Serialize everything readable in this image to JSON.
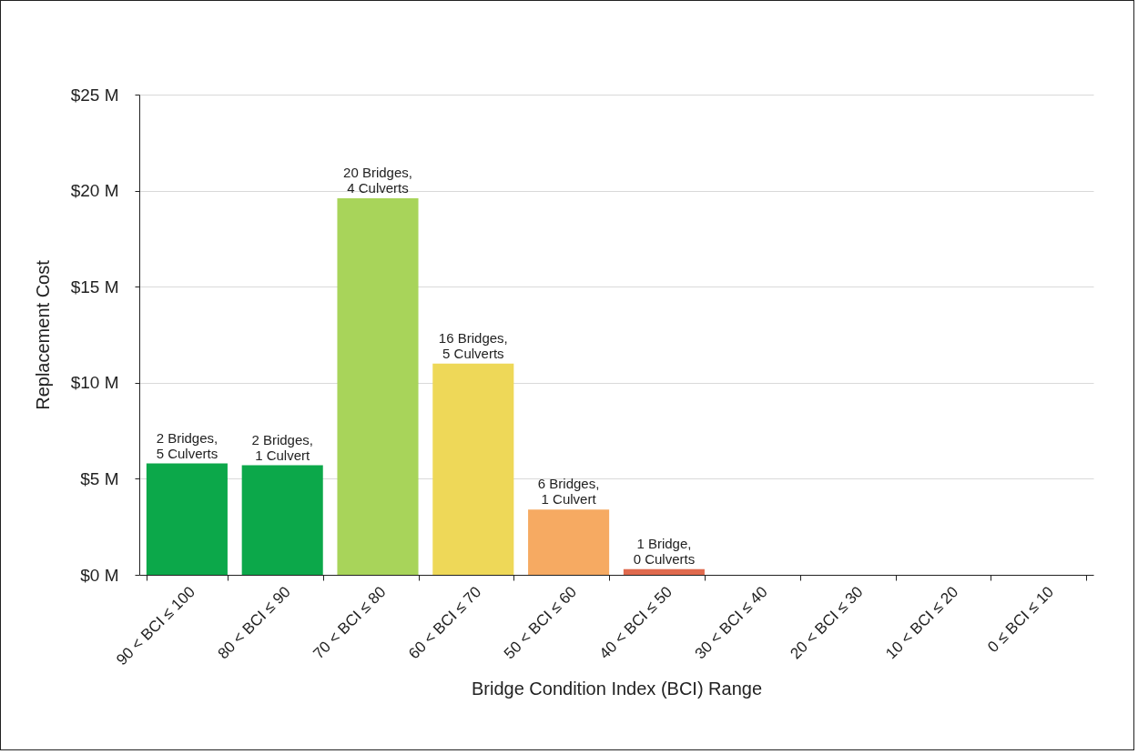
{
  "chart_data": {
    "type": "bar",
    "xlabel": "Bridge Condition Index (BCI) Range",
    "ylabel": "Replacement Cost",
    "categories": [
      "90 < BCI ≤ 100",
      "80 < BCI ≤ 90",
      "70 < BCI ≤ 80",
      "60 < BCI ≤ 70",
      "50 < BCI ≤ 60",
      "40 < BCI ≤ 50",
      "30 < BCI ≤ 40",
      "20 < BCI ≤ 30",
      "10 < BCI ≤ 20",
      "0 ≤ BCI ≤ 10"
    ],
    "values": [
      5.8,
      5.7,
      19.6,
      11.0,
      3.4,
      0.3,
      0,
      0,
      0,
      0
    ],
    "colors": [
      "#0ca84a",
      "#0ca84a",
      "#a8d45a",
      "#eed858",
      "#f6aa62",
      "#e06a4e",
      "#d9534f",
      "#d9534f",
      "#d9534f",
      "#d9534f"
    ],
    "annotations": [
      {
        "text": "2 Bridges, 5 Culverts",
        "x": "90 < BCI ≤ 100",
        "y": 5.8
      },
      {
        "text": "2 Bridges, 1 Culvert",
        "x": "80 < BCI ≤ 90",
        "y": 5.7
      },
      {
        "text": "20 Bridges, 4 Culverts",
        "x": "70 < BCI ≤ 80",
        "y": 19.6
      },
      {
        "text": "16 Bridges, 5 Culverts",
        "x": "60 < BCI ≤ 70",
        "y": 11.0
      },
      {
        "text": "6 Bridges, 1 Culvert",
        "x": "50 < BCI ≤ 60",
        "y": 3.4
      },
      {
        "text": "1 Bridge, 0 Culverts",
        "x": "40 < BCI ≤ 50",
        "y": 0.3
      }
    ],
    "ylim": [
      0,
      25
    ],
    "yticks": [
      {
        "value": 0,
        "label": "$0 M"
      },
      {
        "value": 5,
        "label": "$5 M"
      },
      {
        "value": 10,
        "label": "$10 M"
      },
      {
        "value": 15,
        "label": "$15 M"
      },
      {
        "value": 20,
        "label": "$20 M"
      },
      {
        "value": 25,
        "label": "$25 M"
      }
    ],
    "grid": "y"
  }
}
